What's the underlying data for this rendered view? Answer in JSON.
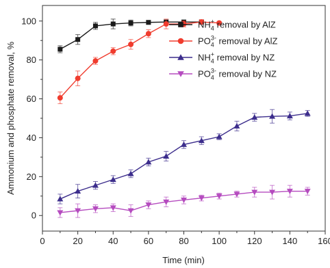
{
  "chart_data": {
    "type": "line",
    "xlabel": "Time (min)",
    "ylabel": "Ammonium and phosphate removal, %",
    "xlim": [
      0,
      160
    ],
    "ylim": [
      -8,
      108
    ],
    "x_ticks": [
      0,
      20,
      40,
      60,
      80,
      100,
      120,
      140,
      160
    ],
    "y_ticks": [
      0,
      20,
      40,
      60,
      80,
      100
    ],
    "grid": false,
    "legend_position": "top-right",
    "series": [
      {
        "name": "NH4+ removal by AlZ",
        "legend": {
          "base": "NH",
          "sub": "4",
          "sup": "+",
          "rest": " removal by AlZ"
        },
        "color": "#1a1a1a",
        "marker": "square",
        "x": [
          10,
          20,
          30,
          40,
          50,
          60,
          70,
          80,
          90
        ],
        "y": [
          85.5,
          90.5,
          97.5,
          98.5,
          99,
          99.3,
          99.5,
          99.5,
          99.5
        ],
        "err": [
          1.8,
          2.5,
          1.8,
          2.5,
          1.5,
          1.0,
          1.0,
          0.8,
          0.8
        ]
      },
      {
        "name": "PO43- removal by AlZ",
        "legend": {
          "base": "PO",
          "sub": "4",
          "sup": "3-",
          "rest": " removal by AlZ"
        },
        "color": "#f03c2e",
        "marker": "circle",
        "x": [
          10,
          20,
          30,
          40,
          50,
          60,
          70,
          80,
          90,
          100
        ],
        "y": [
          60.5,
          70.5,
          79.5,
          84.5,
          88,
          93.5,
          98.5,
          98.5,
          99.5,
          99
        ],
        "err": [
          3.0,
          3.8,
          1.8,
          1.8,
          2.5,
          2.0,
          2.5,
          1.5,
          1.2,
          0.8
        ]
      },
      {
        "name": "NH4+ removal by NZ",
        "legend": {
          "base": "NH",
          "sub": "4",
          "sup": "+",
          "rest": " removal by NZ"
        },
        "color": "#3c2d8c",
        "marker": "triangle-up",
        "x": [
          10,
          20,
          30,
          40,
          50,
          60,
          70,
          80,
          90,
          100,
          110,
          120,
          130,
          140,
          150
        ],
        "y": [
          8.5,
          12.5,
          15.5,
          18.5,
          21.5,
          27.5,
          30.5,
          36.5,
          38.5,
          40.5,
          46,
          50.5,
          51,
          51.2,
          52.5
        ],
        "err": [
          2.5,
          3.5,
          2.0,
          2.0,
          2.0,
          2.0,
          2.5,
          2.0,
          2.0,
          1.5,
          2.5,
          2.0,
          3.5,
          2.0,
          1.5
        ]
      },
      {
        "name": "PO43- removal by NZ",
        "legend": {
          "base": "PO",
          "sub": "4",
          "sup": "3-",
          "rest": " removal by NZ"
        },
        "color": "#b54bbf",
        "marker": "triangle-down",
        "x": [
          10,
          20,
          30,
          40,
          50,
          60,
          70,
          80,
          90,
          100,
          110,
          120,
          130,
          140,
          150
        ],
        "y": [
          1.5,
          2.5,
          3.5,
          4,
          2.5,
          5.5,
          7,
          8,
          9,
          10,
          11,
          12,
          12,
          12.5,
          12.5
        ],
        "err": [
          2.5,
          3.5,
          2.0,
          2.0,
          3.0,
          2.0,
          2.5,
          2.0,
          1.5,
          1.5,
          1.5,
          2.5,
          3.5,
          3.0,
          2.0
        ]
      }
    ]
  }
}
